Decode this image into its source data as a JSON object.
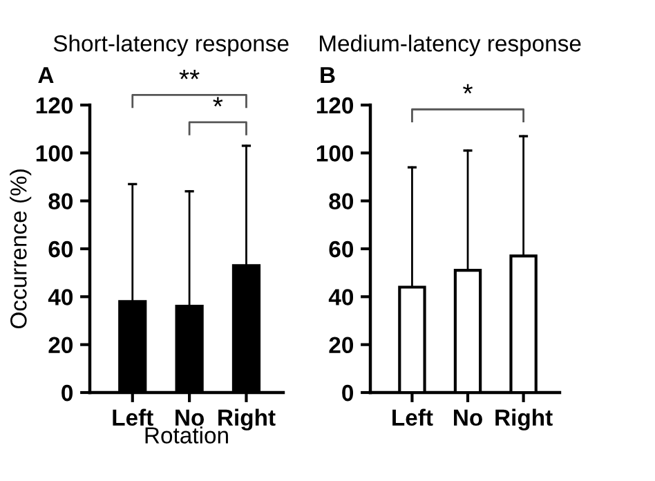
{
  "chart_data": [
    {
      "type": "bar",
      "title": "Short-latency response",
      "ylabel": "Occurrence (%)",
      "xlabel": "Rotation",
      "categories": [
        "Left",
        "No",
        "Right"
      ],
      "series": [
        {
          "color": "#000000",
          "values": [
            38,
            36,
            53
          ],
          "errors": [
            [
              38,
              87
            ],
            [
              36,
              84
            ],
            [
              53,
              103
            ]
          ]
        }
      ],
      "ylim": [
        0,
        120
      ],
      "yticks": [
        0,
        20,
        40,
        60,
        80,
        100,
        120
      ],
      "grid": false,
      "legend": false,
      "annotations": [
        "A",
        "**",
        "*"
      ]
    },
    {
      "type": "bar",
      "title": "Medium-latency response",
      "categories": [
        "Left",
        "No",
        "Right"
      ],
      "series": [
        {
          "color": "#ffffff",
          "values": [
            44,
            51,
            57
          ],
          "errors": [
            [
              44,
              94
            ],
            [
              51,
              101
            ],
            [
              57,
              107
            ]
          ]
        }
      ],
      "ylim": [
        0,
        120
      ],
      "yticks": [
        0,
        20,
        40,
        60,
        80,
        100,
        120
      ],
      "grid": false,
      "legend": false,
      "annotations": [
        "B",
        "*"
      ]
    }
  ]
}
